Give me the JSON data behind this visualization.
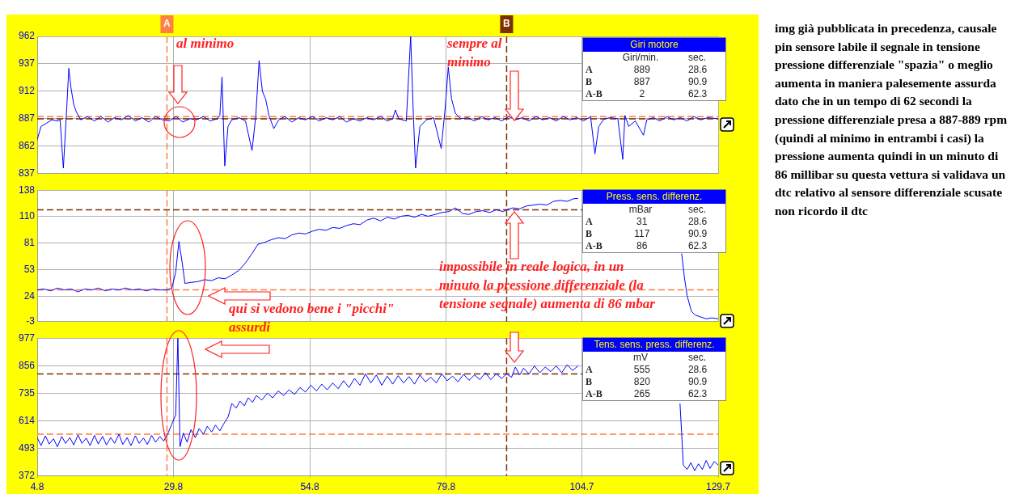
{
  "chart_data": [
    {
      "type": "line",
      "title": "Giri motore",
      "color": "#0000ff",
      "xlim": [
        4.8,
        129.7
      ],
      "xticks": [
        4.8,
        29.8,
        54.8,
        79.8,
        104.7,
        129.7
      ],
      "ylim": [
        837,
        962
      ],
      "yticks": [
        837,
        862,
        887,
        912,
        937,
        962
      ],
      "grid": true,
      "tick_labels": "y",
      "x": [
        4.8,
        5.5,
        6.5,
        7.5,
        8.5,
        9.0,
        9.6,
        10.1,
        10.6,
        11.0,
        11.5,
        12.0,
        12.8,
        14,
        15.3,
        16.5,
        17.8,
        19,
        20.3,
        21.5,
        22.8,
        24,
        25.3,
        26.5,
        27.8,
        29,
        30.3,
        31.5,
        32.8,
        34,
        35.3,
        36.5,
        37.8,
        38.3,
        38.7,
        39.2,
        39.8,
        40.5,
        41.8,
        43,
        44.2,
        44.9,
        45.5,
        46.1,
        46.7,
        47.3,
        48.2,
        49.1,
        50.2,
        51.5,
        52.8,
        54,
        55.3,
        56.5,
        57.8,
        59,
        60.3,
        61.5,
        62.8,
        64,
        65.3,
        66.5,
        67.8,
        69,
        70.0,
        70.5,
        71.1,
        72.5,
        73.3,
        73.8,
        74.2,
        75.0,
        76.2,
        77.5,
        78.9,
        79.6,
        80.2,
        80.8,
        81.5,
        82.5,
        83.8,
        85,
        86.3,
        87.5,
        88.8,
        90,
        91.3,
        92.5,
        93.8,
        95,
        96.3,
        97.5,
        98.8,
        100,
        101.3,
        102.5,
        103.8,
        105,
        106.3,
        107.1,
        107.8,
        108.8,
        110,
        111.3,
        112.2,
        112.6,
        113.3,
        114.5,
        116.0,
        116.6,
        117.8,
        119,
        120.3,
        121.5,
        122.8,
        124,
        125.3,
        126.5,
        127.8,
        129.7
      ],
      "values": [
        868,
        880,
        883,
        886,
        885,
        886,
        842,
        886,
        933,
        915,
        900,
        893,
        886,
        889,
        885,
        889,
        884,
        888,
        886,
        890,
        885,
        888,
        884,
        889,
        886,
        885,
        889,
        884,
        887,
        886,
        889,
        885,
        887,
        890,
        925,
        844,
        880,
        886,
        888,
        885,
        858,
        890,
        940,
        912,
        905,
        890,
        878,
        886,
        889,
        884,
        888,
        886,
        889,
        885,
        888,
        886,
        889,
        884,
        887,
        885,
        888,
        886,
        889,
        885,
        887,
        895,
        887,
        885,
        962,
        890,
        842,
        880,
        886,
        888,
        860,
        895,
        934,
        905,
        892,
        887,
        888,
        885,
        889,
        886,
        888,
        885,
        889,
        886,
        888,
        885,
        889,
        886,
        888,
        885,
        889,
        886,
        888,
        885,
        889,
        855,
        880,
        887,
        888,
        887,
        850,
        890,
        880,
        885,
        872,
        886,
        888,
        885,
        889,
        886,
        888,
        885,
        889,
        886,
        888,
        887
      ],
      "ref_lines": [
        {
          "axis": "x",
          "value": 28.6,
          "label": "A",
          "color": "#ff8040",
          "line_style": "dashed"
        },
        {
          "axis": "x",
          "value": 90.9,
          "label": "B",
          "color": "#7b3000",
          "line_style": "dashed"
        },
        {
          "axis": "y",
          "value": 889,
          "color": "#ff8040",
          "line_style": "dashed"
        },
        {
          "axis": "y",
          "value": 887,
          "color": "#7b3000",
          "line_style": "dashed"
        }
      ],
      "annotations": [
        "Giri/min.",
        "sec.",
        "A",
        "889",
        "28.6",
        "B",
        "887",
        "90.9",
        "A-B",
        "2",
        "62.3",
        "al minimo",
        "sempre al minimo"
      ]
    },
    {
      "type": "line",
      "title": "Press. sens. differenz.",
      "color": "#0000ff",
      "xlim": [
        4.8,
        129.7
      ],
      "xticks": [
        4.8,
        29.8,
        54.8,
        79.8,
        104.7,
        129.7
      ],
      "ylim": [
        -3,
        138
      ],
      "yticks": [
        -3,
        24,
        53,
        81,
        110,
        138
      ],
      "grid": true,
      "tick_labels": "y",
      "x": [
        4.8,
        6,
        7.3,
        8.5,
        9.8,
        11,
        12.3,
        13.5,
        14.8,
        16,
        17.3,
        18.5,
        19.8,
        21,
        22.3,
        23.5,
        24.8,
        26,
        27.3,
        28.6,
        29.5,
        30.2,
        30.8,
        31.4,
        31.9,
        33,
        34.3,
        35.5,
        36.8,
        38,
        39.3,
        40.5,
        41.8,
        43,
        44.2,
        45.3,
        46.5,
        47.8,
        49,
        50.3,
        51.5,
        52.8,
        54,
        55.3,
        56.5,
        57.8,
        59,
        60.3,
        61.5,
        62.8,
        64,
        65.3,
        66.5,
        67.8,
        69,
        70.3,
        71.5,
        72.8,
        74,
        75.3,
        76.5,
        77.8,
        79,
        80.3,
        81.5,
        82.8,
        84,
        85.3,
        86.5,
        87.8,
        89,
        90.3,
        90.9,
        92,
        93.3,
        94.5,
        95.8,
        97,
        98.3,
        99.5,
        100.8,
        102,
        103.3,
        104,
        105,
        123.0,
        123.5,
        124,
        124.8,
        125.5,
        126.5,
        127.5,
        128.5,
        129.7
      ],
      "values": [
        31,
        32,
        30,
        33,
        31,
        32,
        29,
        32,
        31,
        33,
        30,
        32,
        31,
        33,
        31,
        32,
        30,
        32,
        31,
        31,
        33,
        50,
        83,
        60,
        38,
        39,
        40,
        42,
        41,
        44,
        43,
        47,
        52,
        60,
        70,
        80,
        82,
        85,
        87,
        86,
        90,
        92,
        91,
        94,
        96,
        95,
        98,
        97,
        100,
        102,
        101,
        106,
        108,
        105,
        109,
        107,
        110,
        111,
        109,
        112,
        110,
        112,
        114,
        115,
        119,
        113,
        112,
        115,
        116,
        114,
        117,
        115,
        117,
        119,
        118,
        121,
        122,
        123,
        122,
        126,
        127,
        126,
        129,
        129,
        null,
        70,
        45,
        25,
        8,
        4,
        2,
        0,
        1,
        0
      ],
      "ref_lines": [
        {
          "axis": "x",
          "value": 28.6,
          "color": "#ff8040",
          "line_style": "dashed"
        },
        {
          "axis": "x",
          "value": 90.9,
          "color": "#7b3000",
          "line_style": "dashed"
        },
        {
          "axis": "y",
          "value": 31,
          "color": "#ff8040",
          "line_style": "dashed"
        },
        {
          "axis": "y",
          "value": 117,
          "color": "#7b3000",
          "line_style": "dashed"
        }
      ],
      "annotations": [
        "mBar",
        "sec.",
        "A",
        "31",
        "28.6",
        "B",
        "117",
        "90.9",
        "A-B",
        "86",
        "62.3",
        "qui si vedono bene i \"picchi\" assurdi",
        "impossibile in reale logica, in un minuto la pressione differenziale (la tensione segnale) aumenta di 86 mbar"
      ]
    },
    {
      "type": "line",
      "title": "Tens. sens. press. differenz.",
      "color": "#0000ff",
      "xlim": [
        4.8,
        129.7
      ],
      "xticks": [
        4.8,
        29.8,
        54.8,
        79.8,
        104.7,
        129.7
      ],
      "ylim": [
        372,
        977
      ],
      "yticks": [
        372,
        493,
        614,
        735,
        856,
        977
      ],
      "grid": true,
      "x": [
        4.8,
        5.5,
        6.3,
        7,
        7.8,
        8.5,
        9.3,
        10,
        10.8,
        11.5,
        12.3,
        13,
        13.8,
        14.5,
        15.3,
        16,
        16.8,
        17.5,
        18.3,
        19,
        19.8,
        20.5,
        21.3,
        22,
        22.8,
        23.5,
        24.3,
        25,
        25.8,
        26.5,
        27.3,
        28,
        28.8,
        29.5,
        30.2,
        30.6,
        31.0,
        31.6,
        32.3,
        33,
        33.8,
        34.5,
        35.3,
        36,
        36.8,
        37.5,
        38.3,
        39,
        39.8,
        40.5,
        41.3,
        42,
        42.8,
        43.5,
        44.3,
        45,
        46,
        47,
        48,
        49,
        50,
        51,
        52,
        53,
        54,
        55,
        56,
        57,
        58,
        59,
        60,
        61,
        62,
        63,
        64,
        65,
        66,
        67,
        68,
        69,
        70,
        71,
        72,
        73,
        74,
        75,
        76,
        77,
        78,
        79,
        80,
        81,
        82,
        83,
        84,
        85,
        86,
        87,
        88,
        89,
        90,
        90.9,
        91.8,
        92.5,
        93.3,
        94,
        95,
        96,
        97,
        98,
        99,
        100,
        101,
        102,
        103,
        104,
        105,
        122.7,
        123.0,
        123.3,
        124,
        124.7,
        125.4,
        126.1,
        126.8,
        127.5,
        128.2,
        129,
        129.7
      ],
      "values": [
        540,
        505,
        548,
        512,
        535,
        500,
        545,
        515,
        540,
        508,
        552,
        515,
        538,
        505,
        550,
        512,
        545,
        508,
        540,
        515,
        555,
        510,
        540,
        505,
        548,
        515,
        538,
        510,
        550,
        520,
        545,
        525,
        560,
        600,
        640,
        977,
        500,
        560,
        520,
        575,
        540,
        580,
        555,
        590,
        565,
        595,
        570,
        600,
        630,
        690,
        670,
        700,
        680,
        715,
        695,
        725,
        705,
        735,
        715,
        745,
        725,
        750,
        730,
        760,
        740,
        770,
        745,
        775,
        750,
        780,
        755,
        790,
        760,
        800,
        770,
        820,
        780,
        815,
        770,
        810,
        775,
        812,
        780,
        808,
        775,
        815,
        785,
        805,
        780,
        820,
        790,
        810,
        785,
        818,
        792,
        815,
        795,
        825,
        795,
        820,
        800,
        820,
        805,
        850,
        815,
        845,
        820,
        855,
        825,
        850,
        830,
        855,
        825,
        860,
        835,
        855,
        null,
        690,
        560,
        420,
        400,
        430,
        395,
        425,
        400,
        440,
        405,
        435,
        420
      ],
      "ref_lines": [
        {
          "axis": "x",
          "value": 28.6,
          "color": "#ff8040",
          "line_style": "dashed"
        },
        {
          "axis": "x",
          "value": 90.9,
          "color": "#7b3000",
          "line_style": "dashed"
        },
        {
          "axis": "y",
          "value": 555,
          "color": "#ff8040",
          "line_style": "dashed"
        },
        {
          "axis": "y",
          "value": 820,
          "color": "#7b3000",
          "line_style": "dashed"
        }
      ],
      "annotations": [
        "mV",
        "sec.",
        "A",
        "555",
        "28.6",
        "B",
        "820",
        "90.9",
        "A-B",
        "265",
        "62.3"
      ]
    },
    {
      "type": "other",
      "annotations": [
        "img già pubblicata in precedenza, causale pin sensore labile il segnale in tensione pressione differenziale \"spazia\" o meglio aumenta in maniera palesemente assurda dato che in un tempo di 62 secondi la pressione differenziale presa a 887-889 rpm (quindi al minimo in entrambi i casi) la pressione aumenta quindi in un minuto di 86 millibar su questa vettura si validava un dtc relativo al sensore differenziale scusate non ricordo il dtc"
      ]
    }
  ]
}
